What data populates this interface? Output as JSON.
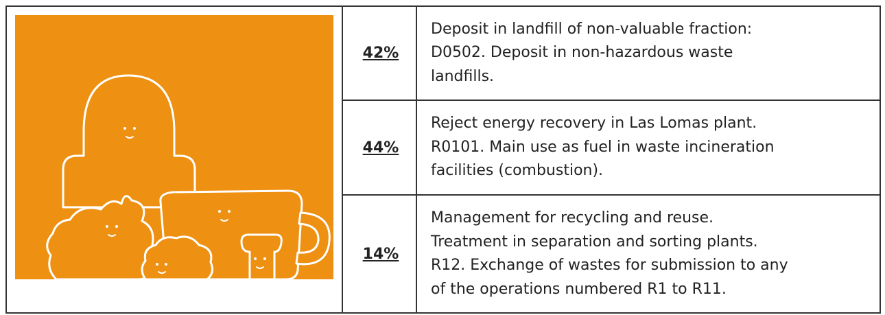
{
  "table": {
    "rows": [
      {
        "percent": "42%",
        "lines": [
          "Deposit in landfill of non-valuable fraction:",
          "D0502. Deposit in non-hazardous waste",
          "landfills."
        ]
      },
      {
        "percent": "44%",
        "lines": [
          "Reject energy recovery in Las Lomas plant.",
          "R0101. Main use as fuel in waste incineration",
          "facilities (combustion)."
        ]
      },
      {
        "percent": "14%",
        "lines": [
          "Management for recycling and reuse.",
          "Treatment in separation and sorting plants.",
          "R12. Exchange of wastes for submission to any",
          "of the operations numbered R1 to R11."
        ]
      }
    ]
  }
}
